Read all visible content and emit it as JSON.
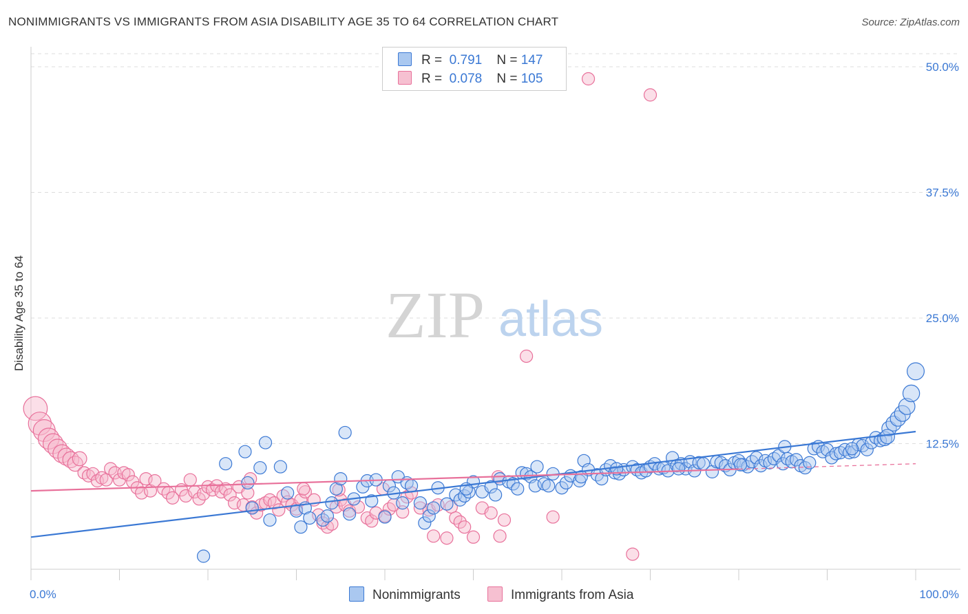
{
  "title": "NONIMMIGRANTS VS IMMIGRANTS FROM ASIA DISABILITY AGE 35 TO 64 CORRELATION CHART",
  "source": "Source: ZipAtlas.com",
  "watermark": {
    "zip": "ZIP",
    "atlas": "atlas"
  },
  "colors": {
    "blue": "#3a78d4",
    "blue_fill": "#aac8f0",
    "pink": "#e8709a",
    "pink_fill": "#f6b8cb",
    "grid": "#dddddd",
    "axis_label": "#3a78d4"
  },
  "legend": {
    "rows": [
      {
        "r_label": "R =",
        "r_value": "0.791",
        "n_label": "N =",
        "n_value": "147"
      },
      {
        "r_label": "R =",
        "r_value": "0.078",
        "n_label": "N =",
        "n_value": "105"
      }
    ],
    "bottom": [
      "Nonimmigrants",
      "Immigrants from Asia"
    ]
  },
  "chart_data": {
    "type": "scatter",
    "title": "NONIMMIGRANTS VS IMMIGRANTS FROM ASIA DISABILITY AGE 35 TO 64 CORRELATION CHART",
    "xlabel": "",
    "ylabel": "Disability Age 35 to 64",
    "xlim": [
      0,
      100
    ],
    "ylim": [
      0,
      52
    ],
    "x_tick_labels": [
      "0.0%",
      "100.0%"
    ],
    "y_ticks": [
      12.5,
      25.0,
      37.5,
      50.0
    ],
    "y_tick_labels": [
      "12.5%",
      "25.0%",
      "37.5%",
      "50.0%"
    ],
    "grid": true,
    "legend_position": "top-center",
    "series": [
      {
        "name": "Nonimmigrants",
        "r": 0.791,
        "n": 147,
        "trend": {
          "x": [
            0,
            100
          ],
          "y": [
            3.2,
            13.7
          ]
        },
        "points": [
          [
            19.5,
            1.3
          ],
          [
            22,
            10.5
          ],
          [
            24.2,
            11.7
          ],
          [
            24.5,
            8.6
          ],
          [
            25,
            6.1
          ],
          [
            25.9,
            10.1
          ],
          [
            26.5,
            12.6
          ],
          [
            27,
            4.9
          ],
          [
            28.2,
            10.2
          ],
          [
            29,
            7.6
          ],
          [
            30,
            5.8
          ],
          [
            30.5,
            4.2
          ],
          [
            31,
            6.1
          ],
          [
            31.5,
            5.1
          ],
          [
            33,
            4.9
          ],
          [
            33.5,
            5.3
          ],
          [
            34,
            6.6
          ],
          [
            34.5,
            8.0
          ],
          [
            35,
            9.0
          ],
          [
            35.5,
            13.6
          ],
          [
            36,
            5.5
          ],
          [
            36.5,
            7.0
          ],
          [
            37.5,
            8.2
          ],
          [
            38,
            8.8
          ],
          [
            38.5,
            6.8
          ],
          [
            39,
            8.9
          ],
          [
            40,
            5.2
          ],
          [
            40.5,
            8.3
          ],
          [
            41,
            7.6
          ],
          [
            41.5,
            9.2
          ],
          [
            42,
            6.6
          ],
          [
            42.5,
            8.6
          ],
          [
            43,
            8.3
          ],
          [
            44,
            6.6
          ],
          [
            44.5,
            4.6
          ],
          [
            45,
            5.3
          ],
          [
            45.5,
            6.1
          ],
          [
            46,
            8.1
          ],
          [
            47,
            6.5
          ],
          [
            48,
            7.4
          ],
          [
            48.5,
            6.9
          ],
          [
            49,
            7.3
          ],
          [
            49.5,
            7.7
          ],
          [
            50,
            8.7
          ],
          [
            51,
            7.7
          ],
          [
            52,
            8.2
          ],
          [
            52.5,
            7.4
          ],
          [
            53,
            9.0
          ],
          [
            54,
            8.7
          ],
          [
            54.5,
            8.5
          ],
          [
            55,
            8.0
          ],
          [
            55.5,
            9.6
          ],
          [
            56,
            9.5
          ],
          [
            56.5,
            9.2
          ],
          [
            57,
            8.3
          ],
          [
            58,
            8.5
          ],
          [
            58.5,
            8.3
          ],
          [
            59,
            9.5
          ],
          [
            60,
            8.1
          ],
          [
            60.5,
            8.6
          ],
          [
            61,
            9.3
          ],
          [
            62,
            8.8
          ],
          [
            62.5,
            10.8
          ],
          [
            63,
            9.9
          ],
          [
            64,
            9.4
          ],
          [
            64.5,
            9.0
          ],
          [
            65,
            9.9
          ],
          [
            65.5,
            10.3
          ],
          [
            66,
            9.6
          ],
          [
            66.5,
            9.5
          ],
          [
            67,
            9.9
          ],
          [
            68,
            10.2
          ],
          [
            68.5,
            9.9
          ],
          [
            69,
            9.6
          ],
          [
            69.5,
            9.8
          ],
          [
            70,
            10.2
          ],
          [
            70.5,
            10.5
          ],
          [
            71,
            10.0
          ],
          [
            71.5,
            10.1
          ],
          [
            72,
            9.8
          ],
          [
            72.5,
            11.1
          ],
          [
            73,
            10.3
          ],
          [
            73.5,
            10.5
          ],
          [
            74,
            10.0
          ],
          [
            74.5,
            10.7
          ],
          [
            75,
            9.8
          ],
          [
            75.5,
            10.6
          ],
          [
            76,
            10.5
          ],
          [
            77,
            9.7
          ],
          [
            77.5,
            10.7
          ],
          [
            78,
            10.6
          ],
          [
            78.5,
            10.3
          ],
          [
            79,
            9.9
          ],
          [
            79.5,
            10.6
          ],
          [
            80,
            10.8
          ],
          [
            80.5,
            10.4
          ],
          [
            81,
            10.2
          ],
          [
            81.5,
            10.7
          ],
          [
            82,
            11.1
          ],
          [
            82.5,
            10.3
          ],
          [
            83,
            10.8
          ],
          [
            83.5,
            10.6
          ],
          [
            84,
            11.0
          ],
          [
            84.5,
            11.3
          ],
          [
            85,
            10.5
          ],
          [
            85.5,
            11.0
          ],
          [
            86,
            10.7
          ],
          [
            86.5,
            10.9
          ],
          [
            87,
            10.3
          ],
          [
            87.5,
            10.1
          ],
          [
            88,
            10.6
          ],
          [
            88.5,
            12.0
          ],
          [
            89,
            12.2
          ],
          [
            89.5,
            11.7
          ],
          [
            90,
            11.9
          ],
          [
            90.5,
            11.1
          ],
          [
            91,
            11.5
          ],
          [
            91.5,
            11.6
          ],
          [
            92,
            11.9
          ],
          [
            92.5,
            11.6
          ],
          [
            93,
            11.7
          ],
          [
            93.5,
            12.4
          ],
          [
            94,
            12.3
          ],
          [
            94.5,
            11.9
          ],
          [
            95,
            12.6
          ],
          [
            95.5,
            13.1
          ],
          [
            96,
            12.8
          ],
          [
            96.5,
            13.0
          ],
          [
            97,
            14.0
          ],
          [
            97.5,
            14.5
          ],
          [
            98,
            15.0
          ],
          [
            98.5,
            15.5
          ],
          [
            99,
            16.2
          ],
          [
            99.5,
            17.5
          ],
          [
            100,
            19.7
          ],
          [
            96.8,
            13.2
          ],
          [
            92.8,
            12.0
          ],
          [
            85.2,
            12.2
          ],
          [
            80.2,
            10.4
          ],
          [
            73.2,
            10.0
          ],
          [
            66.2,
            10.0
          ],
          [
            62.2,
            9.2
          ],
          [
            57.2,
            10.2
          ],
          [
            49.2,
            8.0
          ]
        ]
      },
      {
        "name": "Immigrants from Asia",
        "r": 0.078,
        "n": 105,
        "trend": {
          "x": [
            0,
            100
          ],
          "y": [
            7.8,
            10.5
          ]
        },
        "points": [
          [
            0.5,
            16.0
          ],
          [
            1,
            14.5
          ],
          [
            1.5,
            13.8
          ],
          [
            2,
            13.0
          ],
          [
            2.5,
            12.5
          ],
          [
            3,
            12.0
          ],
          [
            3.5,
            11.5
          ],
          [
            4,
            11.2
          ],
          [
            4.5,
            10.9
          ],
          [
            5,
            10.5
          ],
          [
            5.5,
            11.0
          ],
          [
            6,
            9.6
          ],
          [
            6.5,
            9.3
          ],
          [
            7,
            9.5
          ],
          [
            7.5,
            8.8
          ],
          [
            8,
            9.1
          ],
          [
            8.5,
            8.9
          ],
          [
            9,
            10.0
          ],
          [
            9.5,
            9.6
          ],
          [
            10,
            8.9
          ],
          [
            10.5,
            9.6
          ],
          [
            11,
            9.4
          ],
          [
            11.5,
            8.7
          ],
          [
            12,
            8.1
          ],
          [
            12.5,
            7.6
          ],
          [
            13,
            9.0
          ],
          [
            13.5,
            7.8
          ],
          [
            14,
            8.8
          ],
          [
            15,
            8.0
          ],
          [
            15.5,
            7.6
          ],
          [
            16,
            7.1
          ],
          [
            17,
            7.9
          ],
          [
            17.5,
            7.3
          ],
          [
            18,
            8.9
          ],
          [
            18.5,
            7.7
          ],
          [
            19,
            7.0
          ],
          [
            19.5,
            7.5
          ],
          [
            20,
            8.2
          ],
          [
            20.5,
            7.9
          ],
          [
            21,
            8.3
          ],
          [
            21.5,
            7.7
          ],
          [
            22,
            8.0
          ],
          [
            22.5,
            7.4
          ],
          [
            23,
            6.6
          ],
          [
            23.5,
            8.2
          ],
          [
            24,
            6.4
          ],
          [
            24.5,
            7.6
          ],
          [
            25,
            6.2
          ],
          [
            25.5,
            5.6
          ],
          [
            26,
            6.4
          ],
          [
            26.5,
            6.6
          ],
          [
            27,
            6.9
          ],
          [
            27.5,
            6.6
          ],
          [
            28,
            5.9
          ],
          [
            28.5,
            7.3
          ],
          [
            29,
            6.7
          ],
          [
            29.5,
            6.4
          ],
          [
            30,
            6.0
          ],
          [
            30.5,
            6.9
          ],
          [
            31,
            7.7
          ],
          [
            32,
            6.9
          ],
          [
            32.5,
            5.4
          ],
          [
            33,
            4.6
          ],
          [
            33.5,
            4.2
          ],
          [
            34,
            4.5
          ],
          [
            34.5,
            6.2
          ],
          [
            35,
            6.9
          ],
          [
            35.5,
            6.4
          ],
          [
            36,
            5.8
          ],
          [
            37,
            6.2
          ],
          [
            38,
            5.1
          ],
          [
            38.5,
            4.8
          ],
          [
            39,
            5.6
          ],
          [
            40,
            5.3
          ],
          [
            40.5,
            6.0
          ],
          [
            41,
            6.4
          ],
          [
            42,
            5.7
          ],
          [
            42.5,
            7.2
          ],
          [
            43,
            7.6
          ],
          [
            44,
            6.1
          ],
          [
            45,
            5.9
          ],
          [
            45.5,
            3.3
          ],
          [
            46,
            6.4
          ],
          [
            47,
            3.1
          ],
          [
            47.5,
            6.2
          ],
          [
            48,
            5.1
          ],
          [
            48.5,
            4.7
          ],
          [
            49,
            4.2
          ],
          [
            50,
            3.2
          ],
          [
            51,
            6.1
          ],
          [
            52,
            5.6
          ],
          [
            53,
            3.3
          ],
          [
            53.5,
            4.9
          ],
          [
            56,
            21.2
          ],
          [
            59,
            5.2
          ],
          [
            63,
            48.8
          ],
          [
            68,
            1.5
          ],
          [
            70,
            47.2
          ],
          [
            52.8,
            9.2
          ],
          [
            24.8,
            9.0
          ],
          [
            30.8,
            8.0
          ],
          [
            34.8,
            7.9
          ],
          [
            39.8,
            8.0
          ]
        ]
      }
    ]
  }
}
